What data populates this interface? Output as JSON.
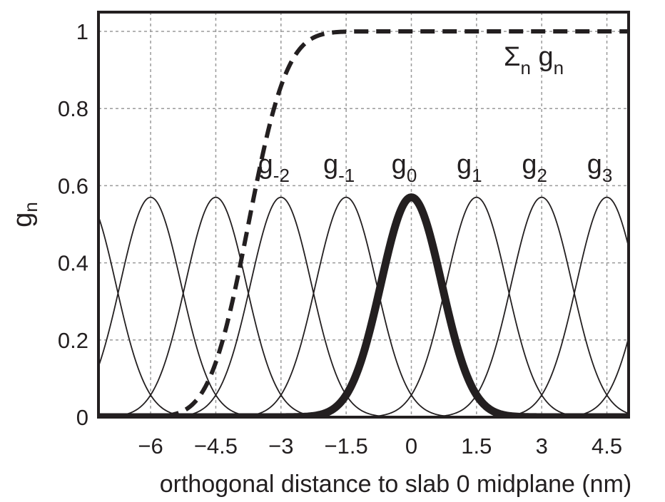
{
  "chart_data": {
    "type": "line",
    "xlabel": "orthogonal distance to slab 0 midplane (nm)",
    "ylabel": "g",
    "ylabel_sub": "n",
    "xlim": [
      -7.2,
      5.0
    ],
    "ylim": [
      0,
      1.05
    ],
    "grid": true,
    "x_ticks": [
      -6,
      -4.5,
      -3,
      -1.5,
      0,
      1.5,
      3,
      4.5
    ],
    "x_tick_labels": [
      "−6",
      "−4.5",
      "−3",
      "−1.5",
      "0",
      "1.5",
      "3",
      "4.5"
    ],
    "y_ticks": [
      0,
      0.2,
      0.4,
      0.6,
      0.8,
      1
    ],
    "y_tick_labels": [
      "0",
      "0.2",
      "0.4",
      "0.6",
      "0.8",
      "1"
    ],
    "gaussian_peak": 0.57,
    "gaussian_sigma": 0.7,
    "series": [
      {
        "name": "g-5",
        "center": -7.5,
        "style": "thin",
        "label": ""
      },
      {
        "name": "g-4",
        "center": -6.0,
        "style": "thin",
        "label": ""
      },
      {
        "name": "g-3",
        "center": -4.5,
        "style": "thin",
        "label": ""
      },
      {
        "name": "g-2",
        "center": -3.0,
        "style": "thin",
        "label": "g",
        "label_sub": "-2"
      },
      {
        "name": "g-1",
        "center": -1.5,
        "style": "thin",
        "label": "g",
        "label_sub": "-1"
      },
      {
        "name": "g0",
        "center": 0.0,
        "style": "thick",
        "label": "g",
        "label_sub": "0"
      },
      {
        "name": "g1",
        "center": 1.5,
        "style": "thin",
        "label": "g",
        "label_sub": "1"
      },
      {
        "name": "g2",
        "center": 3.0,
        "style": "thin",
        "label": "g",
        "label_sub": "2"
      },
      {
        "name": "g3",
        "center": 4.5,
        "style": "thin",
        "label": "g",
        "label_sub": "3"
      },
      {
        "name": "g4",
        "center": 6.0,
        "style": "thin",
        "label": ""
      }
    ],
    "sum_series": {
      "name": "Σn gn",
      "style": "dashed",
      "label_parts": [
        "Σ",
        "n",
        " g",
        "n"
      ],
      "cdf_mean": -3.75,
      "cdf_sigma": 0.7
    }
  }
}
